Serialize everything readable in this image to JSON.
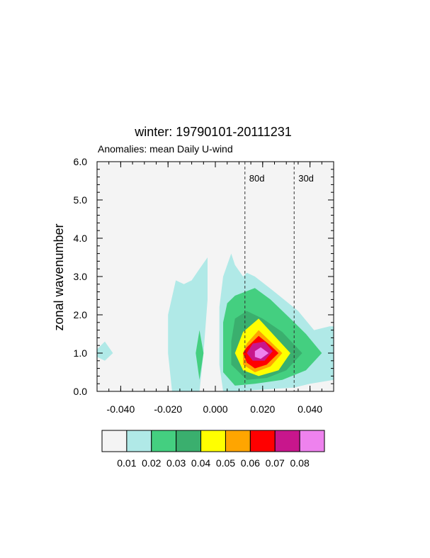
{
  "chart_data": {
    "type": "contour",
    "title": "winter: 19790101-20111231",
    "subtitle": "Anomalies: mean Daily U-wind",
    "xlabel": "",
    "ylabel": "zonal wavenumber",
    "xlim": [
      -0.05,
      0.05
    ],
    "ylim": [
      0,
      6
    ],
    "xticks": [
      -0.04,
      -0.02,
      0.0,
      0.02,
      0.04
    ],
    "xtick_labels": [
      "-0.040",
      "-0.020",
      "0.000",
      "0.020",
      "0.040"
    ],
    "yticks": [
      0,
      1,
      2,
      3,
      4,
      5,
      6
    ],
    "ytick_labels": [
      "0.0",
      "1.0",
      "2.0",
      "3.0",
      "4.0",
      "5.0",
      "6.0"
    ],
    "period_lines": [
      {
        "label": "80d",
        "x": 0.0125
      },
      {
        "label": "30d",
        "x": 0.0333
      }
    ],
    "levels": [
      0.01,
      0.02,
      0.03,
      0.04,
      0.05,
      0.06,
      0.07,
      0.08
    ],
    "colorbar_labels": [
      "0.01",
      "0.02",
      "0.03",
      "0.04",
      "0.05",
      "0.06",
      "0.07",
      "0.08"
    ],
    "fill_colors": [
      "#f4f4f4",
      "#b0e9e7",
      "#44cf80",
      "#3aaf6e",
      "#ffff00",
      "#ffa500",
      "#ff0000",
      "#c8168c",
      "#ee82ee"
    ],
    "regions": [
      {
        "level": 1,
        "points": [
          [
            0.0067,
            3.6
          ],
          [
            0.0083,
            3.3
          ],
          [
            0.0117,
            3.0
          ],
          [
            0.0133,
            3.1
          ],
          [
            0.0167,
            3.0
          ],
          [
            0.025,
            2.6
          ],
          [
            0.035,
            2.1
          ],
          [
            0.0417,
            1.6
          ],
          [
            0.0483,
            1.7
          ],
          [
            0.05,
            1.7
          ],
          [
            0.05,
            0.3
          ],
          [
            0.04,
            0.2
          ],
          [
            0.0333,
            0.1
          ],
          [
            0.0083,
            0.0
          ],
          [
            0.0033,
            0.0
          ],
          [
            0.0017,
            0.7
          ],
          [
            0.0017,
            1.4
          ],
          [
            0.0017,
            2.2
          ],
          [
            0.0033,
            3.0
          ]
        ]
      },
      {
        "level": 1,
        "points": [
          [
            -0.01,
            2.9
          ],
          [
            -0.0067,
            3.2
          ],
          [
            -0.0033,
            3.5
          ],
          [
            -0.0033,
            2.4
          ],
          [
            -0.005,
            1.0
          ],
          [
            -0.0067,
            0.0
          ],
          [
            -0.0183,
            0.0
          ],
          [
            -0.02,
            1.0
          ],
          [
            -0.02,
            2.0
          ],
          [
            -0.0167,
            2.9
          ],
          [
            -0.0133,
            2.8
          ]
        ]
      },
      {
        "level": 1,
        "points": [
          [
            -0.05,
            1.1
          ],
          [
            -0.0467,
            1.3
          ],
          [
            -0.0433,
            1.0
          ],
          [
            -0.0467,
            0.8
          ],
          [
            -0.05,
            0.9
          ]
        ]
      },
      {
        "level": 2,
        "points": [
          [
            0.0083,
            2.5
          ],
          [
            0.0167,
            2.7
          ],
          [
            0.0233,
            2.4
          ],
          [
            0.0317,
            1.9
          ],
          [
            0.0383,
            1.5
          ],
          [
            0.045,
            1.0
          ],
          [
            0.0383,
            0.55
          ],
          [
            0.0283,
            0.3
          ],
          [
            0.0167,
            0.2
          ],
          [
            0.0083,
            0.15
          ],
          [
            0.0033,
            0.5
          ],
          [
            0.0033,
            1.2
          ],
          [
            0.0033,
            1.8
          ],
          [
            0.005,
            2.3
          ]
        ]
      },
      {
        "level": 2,
        "points": [
          [
            -0.0067,
            1.6
          ],
          [
            -0.005,
            1.0
          ],
          [
            -0.0067,
            0.3
          ],
          [
            -0.0083,
            1.0
          ]
        ]
      },
      {
        "level": 3,
        "points": [
          [
            0.0083,
            1.9
          ],
          [
            0.0133,
            2.1
          ],
          [
            0.02,
            1.9
          ],
          [
            0.0283,
            1.55
          ],
          [
            0.0367,
            1.0
          ],
          [
            0.03,
            0.55
          ],
          [
            0.0217,
            0.35
          ],
          [
            0.0133,
            0.3
          ],
          [
            0.0067,
            0.7
          ],
          [
            0.0067,
            1.3
          ]
        ]
      },
      {
        "level": 4,
        "points": [
          [
            0.0117,
            1.55
          ],
          [
            0.0183,
            1.9
          ],
          [
            0.025,
            1.45
          ],
          [
            0.0317,
            1.0
          ],
          [
            0.0267,
            0.55
          ],
          [
            0.0183,
            0.4
          ],
          [
            0.0117,
            0.55
          ],
          [
            0.0083,
            1.0
          ]
        ]
      },
      {
        "level": 5,
        "points": [
          [
            0.0133,
            1.25
          ],
          [
            0.0183,
            1.6
          ],
          [
            0.0233,
            1.3
          ],
          [
            0.0283,
            1.0
          ],
          [
            0.0233,
            0.65
          ],
          [
            0.0167,
            0.5
          ],
          [
            0.0117,
            0.7
          ],
          [
            0.0117,
            1.0
          ]
        ]
      },
      {
        "level": 6,
        "points": [
          [
            0.0133,
            1.15
          ],
          [
            0.0183,
            1.45
          ],
          [
            0.0233,
            1.2
          ],
          [
            0.0267,
            1.0
          ],
          [
            0.0217,
            0.7
          ],
          [
            0.0167,
            0.6
          ],
          [
            0.0133,
            0.75
          ],
          [
            0.0117,
            1.0
          ]
        ]
      },
      {
        "level": 7,
        "points": [
          [
            0.0158,
            1.25
          ],
          [
            0.0208,
            1.3
          ],
          [
            0.0242,
            1.05
          ],
          [
            0.0208,
            0.8
          ],
          [
            0.0158,
            0.8
          ],
          [
            0.0133,
            1.0
          ]
        ]
      },
      {
        "level": 8,
        "points": [
          [
            0.0167,
            1.05
          ],
          [
            0.0192,
            1.15
          ],
          [
            0.0225,
            1.0
          ],
          [
            0.0192,
            0.85
          ],
          [
            0.0167,
            0.9
          ]
        ]
      }
    ]
  }
}
